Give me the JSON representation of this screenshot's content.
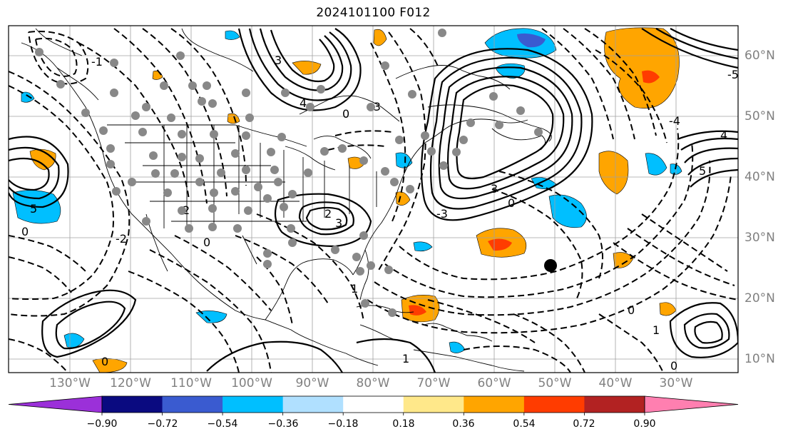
{
  "title": "2024101100 F012",
  "longitude_labels": [
    "130°W",
    "120°W",
    "110°W",
    "100°W",
    "90°W",
    "80°W",
    "70°W",
    "60°W",
    "50°W",
    "40°W",
    "30°W"
  ],
  "latitude_labels": [
    "60°N",
    "50°N",
    "40°N",
    "30°N",
    "20°N",
    "10°N"
  ],
  "colorbar": {
    "ticks": [
      "−0.90",
      "−0.72",
      "−0.54",
      "−0.36",
      "−0.18",
      "0.18",
      "0.36",
      "0.54",
      "0.72",
      "0.90"
    ],
    "colors": [
      "#9b30d9",
      "#0a0a80",
      "#3a5bd0",
      "#00bfff",
      "#b0e0ff",
      "#ffffff",
      "#ffe88a",
      "#ffa500",
      "#ff3c00",
      "#b22222",
      "#ff7fb0"
    ]
  },
  "contour_labels": [
    "-1",
    "-2",
    "-3",
    "-4",
    "-5",
    "0",
    "1",
    "2",
    "3",
    "4",
    "5"
  ],
  "marker": {
    "name": "black-dot",
    "lon": -51,
    "lat": 25.5
  }
}
